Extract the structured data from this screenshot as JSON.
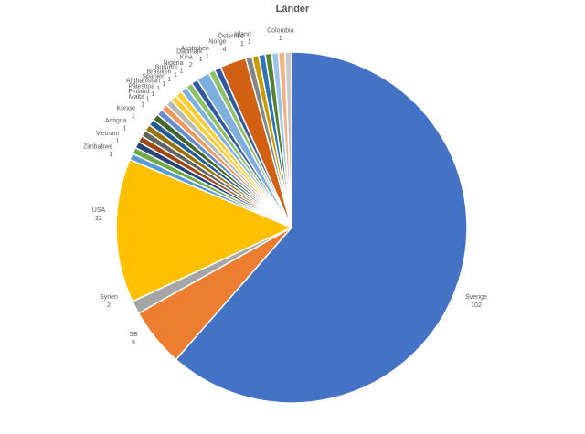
{
  "chart_data": {
    "type": "pie",
    "title": "Länder",
    "slices": [
      {
        "label": "Sverige",
        "value": 102,
        "color": "#4472C4"
      },
      {
        "label": "SB",
        "value": 9,
        "color": "#ED7D31"
      },
      {
        "label": "Syrien",
        "value": 2,
        "color": "#A5A5A5"
      },
      {
        "label": "USA",
        "value": 22,
        "color": "#FFC000"
      },
      {
        "label": "Zimbabwe",
        "value": 1,
        "color": "#5B9BD5"
      },
      {
        "label": "",
        "value": 1,
        "color": "#70AD47"
      },
      {
        "label": "Vietnam",
        "value": 1,
        "color": "#264478"
      },
      {
        "label": "",
        "value": 1,
        "color": "#9E480E"
      },
      {
        "label": "Antigua",
        "value": 1,
        "color": "#636363"
      },
      {
        "label": "",
        "value": 1,
        "color": "#997300"
      },
      {
        "label": "Kongo",
        "value": 1,
        "color": "#255E91"
      },
      {
        "label": "",
        "value": 1,
        "color": "#43682B"
      },
      {
        "label": "Malta",
        "value": 1,
        "color": "#698ED0"
      },
      {
        "label": "Finland",
        "value": 1,
        "color": "#F1975A"
      },
      {
        "label": "Palestina",
        "value": 1,
        "color": "#B7B7B7"
      },
      {
        "label": "Afghanistan",
        "value": 1,
        "color": "#FFCD33"
      },
      {
        "label": "Spanien",
        "value": 1,
        "color": "#FFCD33"
      },
      {
        "label": "Brasilien",
        "value": 1,
        "color": "#7CAFDD"
      },
      {
        "label": "Burundi",
        "value": 1,
        "color": "#8CC168"
      },
      {
        "label": "Nigeria",
        "value": 1,
        "color": "#335AA1"
      },
      {
        "label": "Kina",
        "value": 2,
        "color": "#7CAFDD"
      },
      {
        "label": "Danmark",
        "value": 1,
        "color": "#8CC168"
      },
      {
        "label": "Australien",
        "value": 1,
        "color": "#335AA1"
      },
      {
        "label": "Norge",
        "value": 4,
        "color": "#D26012"
      },
      {
        "label": "Österrike",
        "value": 1,
        "color": "#848484"
      },
      {
        "label": "Island",
        "value": 1,
        "color": "#CC9A00"
      },
      {
        "label": "",
        "value": 1,
        "color": "#2E75B6"
      },
      {
        "label": "",
        "value": 1,
        "color": "#548235"
      },
      {
        "label": "",
        "value": 1,
        "color": "#9DC3E6"
      },
      {
        "label": "Colombia",
        "value": 1,
        "color": "#F4B183"
      },
      {
        "label": "",
        "value": 1,
        "color": "#C9C9C9"
      }
    ]
  }
}
